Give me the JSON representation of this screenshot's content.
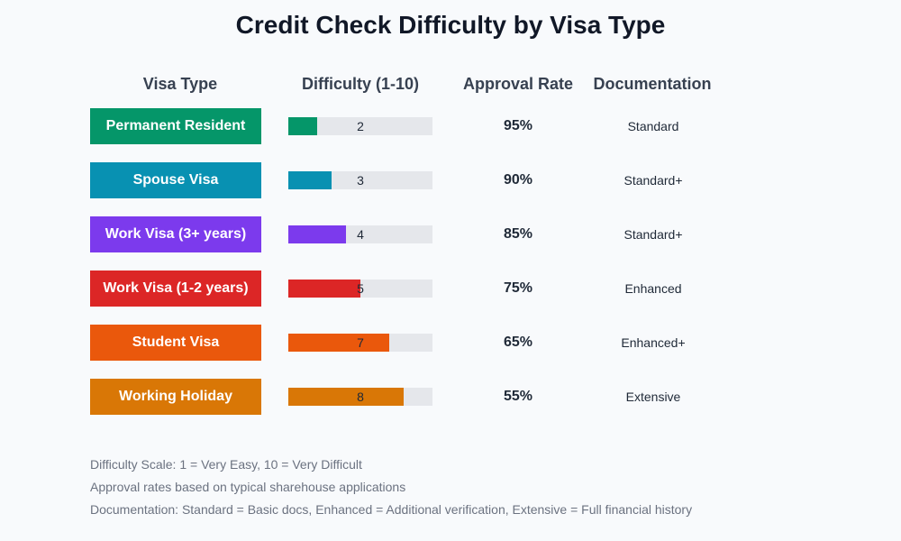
{
  "title": "Credit Check Difficulty by Visa Type",
  "headers": {
    "visa_type": "Visa Type",
    "difficulty": "Difficulty (1-10)",
    "approval_rate": "Approval Rate",
    "documentation": "Documentation"
  },
  "rows": [
    {
      "visa": "Permanent Resident",
      "difficulty": "2",
      "approval": "95%",
      "documentation": "Standard",
      "color": "#059669"
    },
    {
      "visa": "Spouse Visa",
      "difficulty": "3",
      "approval": "90%",
      "documentation": "Standard+",
      "color": "#0891b2"
    },
    {
      "visa": "Work Visa (3+ years)",
      "difficulty": "4",
      "approval": "85%",
      "documentation": "Standard+",
      "color": "#7c3aed"
    },
    {
      "visa": "Work Visa (1-2 years)",
      "difficulty": "5",
      "approval": "75%",
      "documentation": "Enhanced",
      "color": "#dc2626"
    },
    {
      "visa": "Student Visa",
      "difficulty": "7",
      "approval": "65%",
      "documentation": "Enhanced+",
      "color": "#ea580c"
    },
    {
      "visa": "Working Holiday",
      "difficulty": "8",
      "approval": "55%",
      "documentation": "Extensive",
      "color": "#d97706"
    }
  ],
  "notes": [
    "Difficulty Scale: 1 = Very Easy, 10 = Very Difficult",
    "Approval rates based on typical sharehouse applications",
    "Documentation: Standard = Basic docs, Enhanced = Additional verification, Extensive = Full financial history"
  ],
  "chart_data": {
    "type": "table",
    "title": "Credit Check Difficulty by Visa Type",
    "columns": [
      "Visa Type",
      "Difficulty (1-10)",
      "Approval Rate",
      "Documentation"
    ],
    "categories": [
      "Permanent Resident",
      "Spouse Visa",
      "Work Visa (3+ years)",
      "Work Visa (1-2 years)",
      "Student Visa",
      "Working Holiday"
    ],
    "series": [
      {
        "name": "Difficulty (1-10)",
        "values": [
          2,
          3,
          4,
          5,
          7,
          8
        ]
      },
      {
        "name": "Approval Rate (%)",
        "values": [
          95,
          90,
          85,
          75,
          65,
          55
        ]
      }
    ],
    "documentation": [
      "Standard",
      "Standard+",
      "Standard+",
      "Enhanced",
      "Enhanced+",
      "Extensive"
    ],
    "difficulty_range": [
      0,
      10
    ],
    "notes": [
      "Difficulty Scale: 1 = Very Easy, 10 = Very Difficult",
      "Approval rates based on typical sharehouse applications",
      "Documentation: Standard = Basic docs, Enhanced = Additional verification, Extensive = Full financial history"
    ]
  }
}
